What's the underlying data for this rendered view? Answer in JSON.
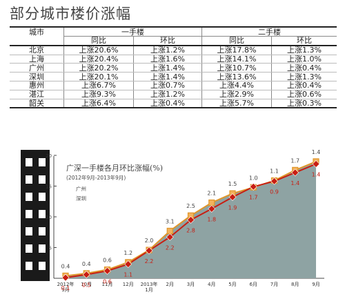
{
  "page": {
    "title": "部分城市楼价涨幅"
  },
  "table": {
    "city_header": "城市",
    "group1": "一手楼",
    "group2": "二手楼",
    "sub_headers": [
      "同比",
      "环比",
      "同比",
      "环比"
    ],
    "rows": [
      {
        "city": "北京",
        "values": [
          "上涨20.6%",
          "上涨1.2%",
          "上涨17.8%",
          "上涨1.3%"
        ]
      },
      {
        "city": "上海",
        "values": [
          "上涨20.4%",
          "上涨1.6%",
          "上涨14.1%",
          "上涨1.0%"
        ]
      },
      {
        "city": "广州",
        "values": [
          "上涨20.2%",
          "上涨1.4%",
          "上涨10.7%",
          "上涨0.4%"
        ]
      },
      {
        "city": "深圳",
        "values": [
          "上涨20.1%",
          "上涨1.4%",
          "上涨13.6%",
          "上涨1.3%"
        ]
      },
      {
        "city": "惠州",
        "values": [
          "上涨6.7%",
          "上涨0.7%",
          "上涨4.4%",
          "上涨0.4%"
        ]
      },
      {
        "city": "湛江",
        "values": [
          "上涨9.3%",
          "上涨1.2%",
          "上涨2.9%",
          "上涨0.6%"
        ]
      },
      {
        "city": "韶关",
        "values": [
          "上涨6.4%",
          "上涨0.4%",
          "上涨5.7%",
          "上涨0.3%"
        ]
      }
    ]
  },
  "chart_data": {
    "type": "line",
    "title": "广深一手楼各月环比涨幅(%)",
    "subtitle": "(2012年9月-2013年9月)",
    "categories": [
      "2012年\n9月",
      "10月",
      "11月",
      "12月",
      "2013年\n1月",
      "2月",
      "3月",
      "4月",
      "5月",
      "6月",
      "7月",
      "8月",
      "9月"
    ],
    "ylim": [
      0,
      20
    ],
    "y_ticks": [
      0,
      5,
      10,
      15,
      20
    ],
    "series": [
      {
        "name": "广州",
        "color": "#e0962a",
        "values": [
          0.4,
          0.4,
          0.6,
          1.2,
          2.0,
          3.1,
          2.5,
          2.1,
          1.5,
          1.0,
          1.1,
          1.7,
          1.4
        ],
        "cumulative": [
          0.4,
          0.8,
          1.4,
          2.6,
          4.6,
          7.7,
          10.2,
          12.3,
          13.8,
          14.8,
          15.9,
          17.6,
          19.0
        ]
      },
      {
        "name": "深圳",
        "color": "#c81e12",
        "values": [
          0.1,
          0.5,
          0.6,
          1.1,
          2.2,
          2.2,
          2.8,
          1.8,
          1.9,
          1.7,
          0.9,
          1.4,
          1.4
        ],
        "cumulative": [
          0.1,
          0.6,
          1.2,
          2.3,
          4.5,
          6.7,
          9.5,
          11.3,
          13.2,
          14.9,
          15.8,
          17.2,
          18.6
        ]
      }
    ]
  }
}
